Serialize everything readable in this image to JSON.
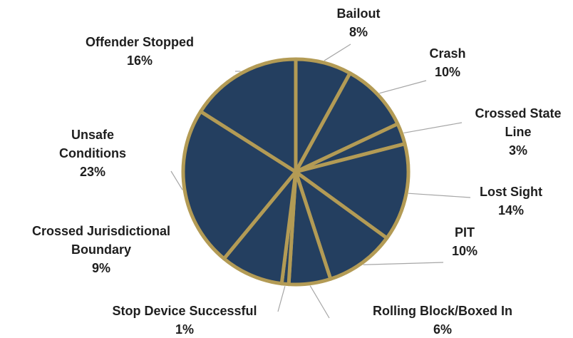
{
  "chart_data": {
    "type": "pie",
    "categories": [
      "Bailout",
      "Crash",
      "Crossed State Line",
      "Lost Sight",
      "PIT",
      "Rolling Block/Boxed In",
      "Stop Device Successful",
      "Crossed Jurisdictional Boundary",
      "Unsafe Conditions",
      "Offender Stopped"
    ],
    "values": [
      8,
      10,
      3,
      14,
      10,
      6,
      1,
      9,
      23,
      16
    ],
    "value_labels": [
      "8%",
      "10%",
      "3%",
      "14%",
      "10%",
      "6%",
      "1%",
      "9%",
      "23%",
      "16%"
    ],
    "color": "#243f60",
    "edge_color": "#b39b55"
  }
}
